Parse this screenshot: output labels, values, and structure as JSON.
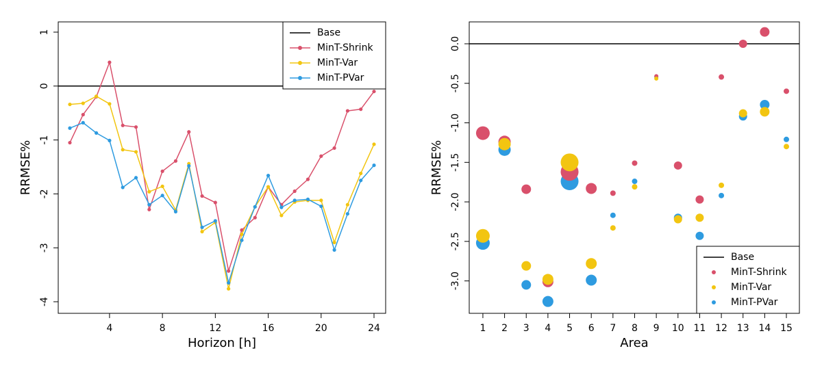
{
  "chart_data": [
    {
      "type": "line",
      "x_label": "Horizon [h]",
      "y_label": "RRMSE%",
      "x": [
        1,
        2,
        3,
        4,
        5,
        6,
        7,
        8,
        9,
        10,
        11,
        12,
        13,
        14,
        15,
        16,
        17,
        18,
        19,
        20,
        21,
        22,
        23,
        24
      ],
      "xlim": [
        0.12,
        24.88
      ],
      "xticks": [
        4,
        8,
        12,
        16,
        20,
        24
      ],
      "ylim": [
        -4.215,
        1.19
      ],
      "yticks": [
        -4,
        -3,
        -2,
        -1,
        0,
        1
      ],
      "legend": "top-right",
      "series": [
        {
          "name": "Base",
          "color": "#000000",
          "marker": false,
          "values": [
            0,
            0,
            0,
            0,
            0,
            0,
            0,
            0,
            0,
            0,
            0,
            0,
            0,
            0,
            0,
            0,
            0,
            0,
            0,
            0,
            0,
            0,
            0,
            0
          ]
        },
        {
          "name": "MinT-Shrink",
          "color": "#d9506b",
          "values": [
            -1.05,
            -0.53,
            -0.2,
            0.44,
            -0.73,
            -0.76,
            -2.29,
            -1.58,
            -1.39,
            -0.85,
            -2.04,
            -2.16,
            -3.43,
            -2.67,
            -2.44,
            -1.87,
            -2.2,
            -1.95,
            -1.73,
            -1.3,
            -1.15,
            -0.46,
            -0.43,
            -0.1
          ]
        },
        {
          "name": "MinT-Var",
          "color": "#f2c511",
          "values": [
            -0.34,
            -0.32,
            -0.19,
            -0.33,
            -1.18,
            -1.22,
            -1.96,
            -1.86,
            -2.3,
            -1.44,
            -2.7,
            -2.53,
            -3.76,
            -2.75,
            -2.24,
            -1.87,
            -2.4,
            -2.15,
            -2.12,
            -2.12,
            -2.9,
            -2.2,
            -1.62,
            -1.08
          ]
        },
        {
          "name": "MinT-PVar",
          "color": "#2e9be0",
          "values": [
            -0.78,
            -0.68,
            -0.87,
            -1.01,
            -1.88,
            -1.7,
            -2.2,
            -2.03,
            -2.33,
            -1.48,
            -2.62,
            -2.5,
            -3.65,
            -2.86,
            -2.24,
            -1.66,
            -2.25,
            -2.12,
            -2.1,
            -2.23,
            -3.04,
            -2.37,
            -1.75,
            -1.47
          ]
        }
      ]
    },
    {
      "type": "scatter",
      "x_label": "Area",
      "y_label": "RRMSE%",
      "x": [
        1,
        2,
        3,
        4,
        5,
        6,
        7,
        8,
        9,
        10,
        11,
        12,
        13,
        14,
        15
      ],
      "xlim": [
        0.37,
        15.6
      ],
      "xticks": [
        1,
        2,
        3,
        4,
        5,
        6,
        7,
        8,
        9,
        10,
        11,
        12,
        13,
        14,
        15
      ],
      "ylim": [
        -3.41,
        0.277
      ],
      "yticks": [
        {
          "value": -3,
          "label": "-3.0"
        },
        -2.5,
        {
          "value": -2,
          "label": "-2.0"
        },
        -1.5,
        {
          "value": -1,
          "label": "-1.0"
        },
        -0.5,
        {
          "value": 0,
          "label": "0.0"
        }
      ],
      "legend": "bottom-right",
      "sizes": [
        10,
        9,
        7,
        8,
        13,
        8,
        4,
        4,
        3,
        6,
        6,
        4,
        6,
        7,
        4
      ],
      "series": [
        {
          "name": "Base",
          "color": "#000000",
          "marker": false,
          "values": [
            0,
            0,
            0,
            0,
            0,
            0,
            0,
            0,
            0,
            0,
            0,
            0,
            0,
            0,
            0
          ]
        },
        {
          "name": "MinT-Shrink",
          "color": "#d9506b",
          "values": [
            -1.13,
            -1.24,
            -1.84,
            -3.01,
            -1.62,
            -1.83,
            -1.89,
            -1.51,
            -0.41,
            -1.54,
            -1.97,
            -0.42,
            0.0,
            0.15,
            -0.6
          ]
        },
        {
          "name": "MinT-Var",
          "color": "#f2c511",
          "values": [
            -2.43,
            -1.27,
            -2.81,
            -2.98,
            -1.5,
            -2.78,
            -2.33,
            -1.81,
            -0.44,
            -2.22,
            -2.2,
            -1.79,
            -0.88,
            -0.86,
            -1.3
          ]
        },
        {
          "name": "MinT-PVar",
          "color": "#2e9be0",
          "values": [
            -2.52,
            -1.34,
            -3.05,
            -3.26,
            -1.74,
            -2.99,
            -2.17,
            -1.74,
            -0.42,
            -2.2,
            -2.43,
            -1.92,
            -0.92,
            -0.77,
            -1.21
          ]
        }
      ]
    }
  ]
}
